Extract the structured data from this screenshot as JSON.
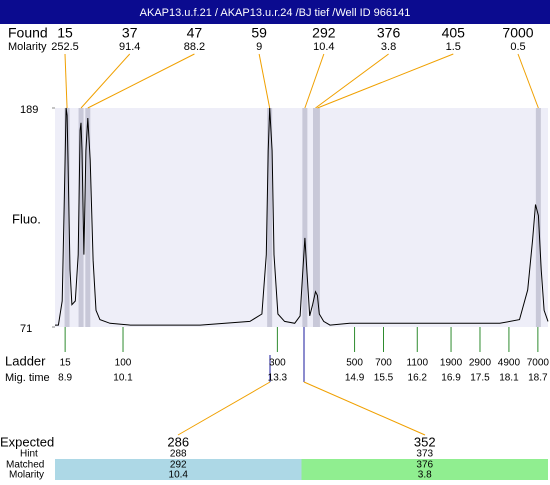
{
  "chart_data": {
    "type": "electropherogram",
    "title": "AKAP13.u.f.21 / AKAP13.u.r.24 /BJ tief /Well ID 966141",
    "found": {
      "label": "Found",
      "molarity_label": "Molarity",
      "sizes": [
        15,
        37,
        47,
        59,
        292,
        376,
        405,
        7000
      ],
      "molarity": [
        252.5,
        91.4,
        88.2,
        9,
        10.4,
        3.8,
        1.5,
        0.5
      ],
      "peak_times": [
        8.94,
        9.23,
        9.37,
        13.14,
        13.87,
        14.09,
        14.13,
        18.71
      ]
    },
    "y_label": "Fluo.",
    "ylim": [
      71,
      189
    ],
    "yticks": [
      71,
      189
    ],
    "xlim": [
      8.69,
      18.91
    ],
    "trace": {
      "color": "#000000",
      "x": [
        8.69,
        8.76,
        8.84,
        8.88,
        8.92,
        8.94,
        8.96,
        9.0,
        9.04,
        9.11,
        9.17,
        9.21,
        9.23,
        9.25,
        9.29,
        9.33,
        9.37,
        9.42,
        9.48,
        9.54,
        9.62,
        9.83,
        10.25,
        11.7,
        12.73,
        12.98,
        13.07,
        13.11,
        13.14,
        13.19,
        13.23,
        13.31,
        13.45,
        13.66,
        13.77,
        13.83,
        13.87,
        13.91,
        13.97,
        14.03,
        14.09,
        14.13,
        14.17,
        14.26,
        14.39,
        14.8,
        15.84,
        16.87,
        17.91,
        18.32,
        18.49,
        18.59,
        18.65,
        18.71,
        18.77,
        18.83,
        18.91
      ],
      "values": [
        72,
        72,
        85,
        137,
        189,
        185,
        161,
        102,
        83,
        85,
        110,
        177,
        181,
        166,
        110,
        166,
        183.6,
        161,
        107,
        80,
        75,
        73,
        72,
        72,
        74,
        78,
        110,
        166,
        189,
        166,
        110,
        78,
        74,
        73,
        77,
        102,
        119,
        102,
        77,
        83,
        90,
        88,
        78,
        74,
        72,
        73,
        73,
        73,
        73,
        75,
        91,
        118,
        137,
        131,
        102,
        80,
        74
      ]
    },
    "ladder": {
      "label": "Ladder",
      "time_label": "Mig. time",
      "color": "#2e8b2e",
      "sizes": [
        15,
        100,
        300,
        500,
        700,
        1100,
        1900,
        2900,
        4900,
        7000
      ],
      "times": [
        8.9,
        10.1,
        13.3,
        14.9,
        15.5,
        16.2,
        16.9,
        17.5,
        18.1,
        18.7
      ]
    },
    "expected": {
      "label": "Expected",
      "hint_label": "Hint",
      "matched_label": "Matched",
      "molarity_label": "Molarity",
      "sizes": [
        286,
        352
      ],
      "hints": [
        288,
        373
      ],
      "matched": [
        292,
        376
      ],
      "molarity": [
        10.4,
        3.8
      ],
      "colors": [
        "#add8e6",
        "#90ee90"
      ]
    }
  }
}
